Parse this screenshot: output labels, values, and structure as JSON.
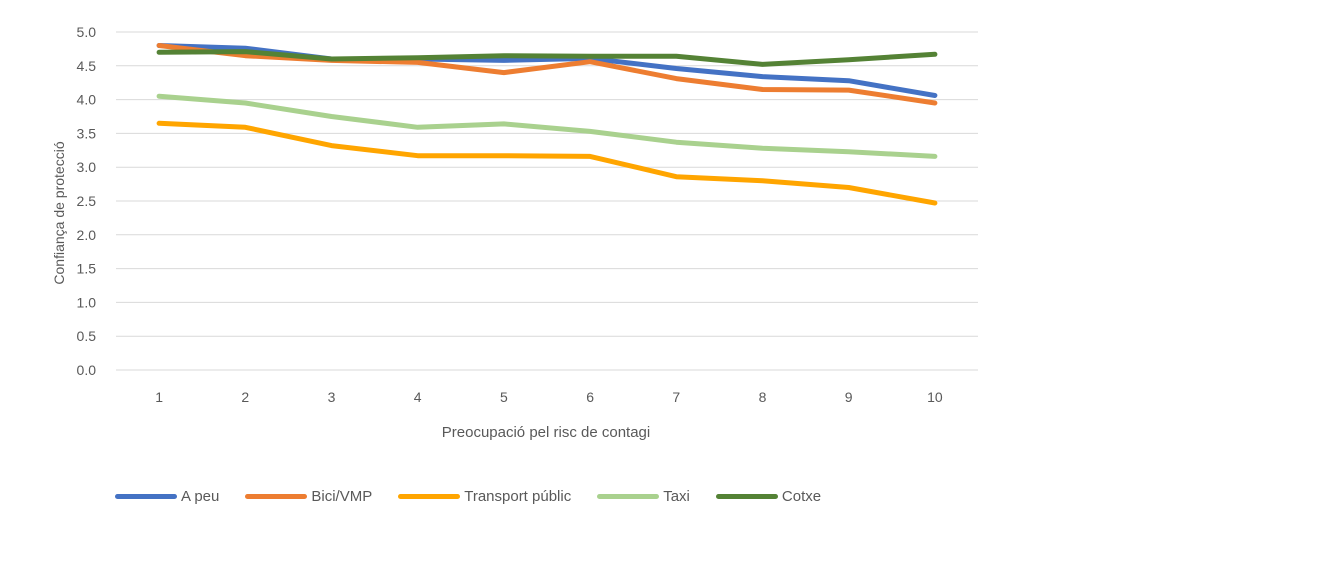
{
  "chart_data": {
    "type": "line",
    "x": [
      1,
      2,
      3,
      4,
      5,
      6,
      7,
      8,
      9,
      10
    ],
    "xlabel": "Preocupació pel risc de contagi",
    "ylabel": "Confiança de protecció",
    "ylim": [
      0,
      5
    ],
    "yticks": [
      "0.0",
      "0.5",
      "1.0",
      "1.5",
      "2.0",
      "2.5",
      "3.0",
      "3.5",
      "4.0",
      "4.5",
      "5.0"
    ],
    "grid": true,
    "legend_position": "bottom",
    "series": [
      {
        "name": "A peu",
        "color": "#4472c4",
        "values": [
          4.8,
          4.76,
          4.6,
          4.6,
          4.58,
          4.61,
          4.46,
          4.34,
          4.28,
          4.06
        ]
      },
      {
        "name": "Bici/VMP",
        "color": "#ed7d31",
        "values": [
          4.8,
          4.65,
          4.58,
          4.55,
          4.4,
          4.56,
          4.31,
          4.15,
          4.14,
          3.95
        ]
      },
      {
        "name": "Transport públic",
        "color": "#ffa500",
        "values": [
          3.65,
          3.59,
          3.32,
          3.17,
          3.17,
          3.16,
          2.86,
          2.8,
          2.7,
          2.47
        ]
      },
      {
        "name": "Taxi",
        "color": "#a9d18e",
        "values": [
          4.05,
          3.95,
          3.75,
          3.59,
          3.64,
          3.53,
          3.37,
          3.28,
          3.23,
          3.16
        ]
      },
      {
        "name": "Cotxe",
        "color": "#548235",
        "values": [
          4.7,
          4.71,
          4.6,
          4.62,
          4.65,
          4.64,
          4.64,
          4.52,
          4.59,
          4.67
        ]
      }
    ]
  }
}
